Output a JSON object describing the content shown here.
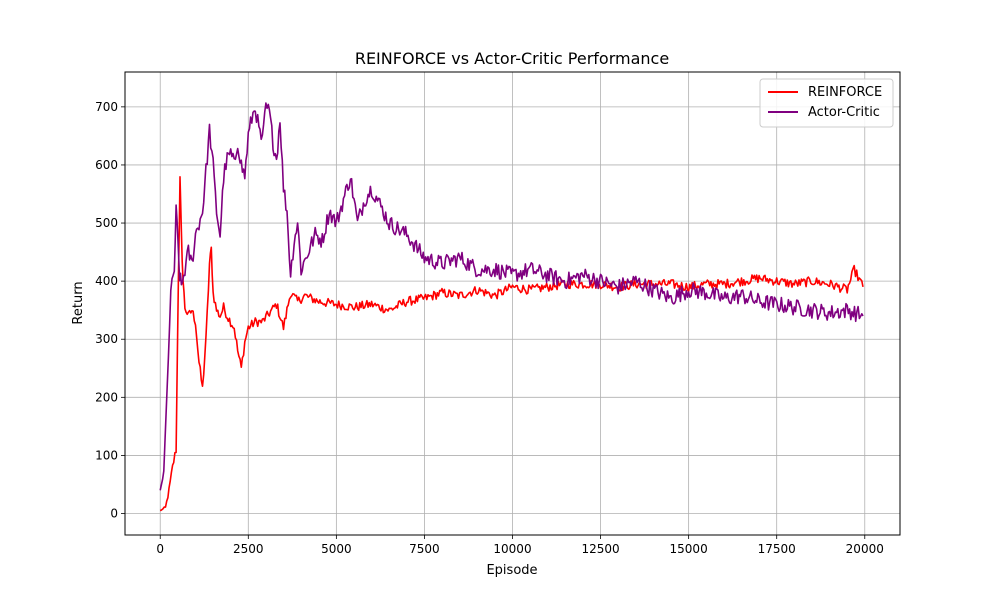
{
  "chart_data": {
    "type": "line",
    "title": "REINFORCE vs Actor-Critic Performance",
    "xlabel": "Episode",
    "ylabel": "Return",
    "xlim": [
      -1000,
      21000
    ],
    "ylim": [
      -37,
      760
    ],
    "xticks": [
      0,
      2500,
      5000,
      7500,
      10000,
      12500,
      15000,
      17500,
      20000
    ],
    "yticks": [
      0,
      100,
      200,
      300,
      400,
      500,
      600,
      700
    ],
    "grid": true,
    "legend_position": "top-right",
    "series": [
      {
        "name": "REINFORCE",
        "color": "#ff0000",
        "noise": 8,
        "x": [
          0,
          150,
          250,
          350,
          450,
          520,
          560,
          600,
          650,
          700,
          800,
          900,
          1000,
          1100,
          1200,
          1300,
          1400,
          1450,
          1500,
          1600,
          1700,
          1800,
          1900,
          2000,
          2100,
          2200,
          2300,
          2400,
          2500,
          2700,
          2900,
          3100,
          3300,
          3500,
          3700,
          3900,
          4100,
          4300,
          4500,
          5000,
          5500,
          6000,
          6500,
          7000,
          7500,
          8000,
          8500,
          9000,
          9500,
          10000,
          10500,
          11000,
          11500,
          12000,
          12500,
          13000,
          13500,
          14000,
          14500,
          15000,
          15500,
          16000,
          16500,
          17000,
          17500,
          18000,
          18500,
          19000,
          19500,
          19700,
          19950
        ],
        "y": [
          5,
          10,
          40,
          80,
          110,
          420,
          575,
          480,
          400,
          355,
          340,
          350,
          330,
          260,
          215,
          300,
          430,
          455,
          380,
          350,
          340,
          355,
          340,
          330,
          320,
          280,
          250,
          295,
          320,
          330,
          330,
          345,
          360,
          320,
          380,
          365,
          375,
          370,
          365,
          360,
          355,
          360,
          350,
          365,
          370,
          380,
          375,
          385,
          375,
          390,
          385,
          390,
          395,
          395,
          395,
          390,
          395,
          395,
          395,
          390,
          395,
          395,
          400,
          405,
          400,
          395,
          400,
          395,
          385,
          420,
          390
        ]
      },
      {
        "name": "Actor-Critic",
        "color": "#800080",
        "noise": 14,
        "x": [
          0,
          100,
          200,
          300,
          400,
          450,
          500,
          550,
          600,
          700,
          800,
          900,
          1000,
          1100,
          1200,
          1300,
          1400,
          1500,
          1600,
          1700,
          1800,
          1900,
          2000,
          2100,
          2200,
          2300,
          2400,
          2500,
          2600,
          2700,
          2800,
          2900,
          3000,
          3100,
          3200,
          3300,
          3400,
          3500,
          3600,
          3700,
          3800,
          3900,
          4000,
          4200,
          4400,
          4600,
          4800,
          5000,
          5200,
          5400,
          5600,
          5800,
          6000,
          6500,
          7000,
          7500,
          8000,
          8500,
          9000,
          9500,
          10000,
          10500,
          11000,
          11500,
          12000,
          12500,
          13000,
          13500,
          14000,
          14500,
          15000,
          15500,
          16000,
          16500,
          17000,
          17500,
          18000,
          18500,
          19000,
          19500,
          19950
        ],
        "y": [
          40,
          70,
          220,
          380,
          420,
          520,
          470,
          410,
          390,
          420,
          450,
          430,
          480,
          500,
          520,
          590,
          660,
          600,
          520,
          480,
          580,
          610,
          620,
          600,
          640,
          600,
          580,
          650,
          680,
          700,
          660,
          640,
          700,
          690,
          640,
          610,
          680,
          560,
          520,
          410,
          470,
          500,
          420,
          450,
          480,
          470,
          520,
          500,
          540,
          580,
          500,
          540,
          560,
          500,
          480,
          440,
          430,
          440,
          420,
          420,
          410,
          420,
          410,
          400,
          410,
          400,
          390,
          400,
          385,
          370,
          385,
          380,
          370,
          375,
          365,
          360,
          355,
          350,
          345,
          350,
          340
        ]
      }
    ]
  }
}
